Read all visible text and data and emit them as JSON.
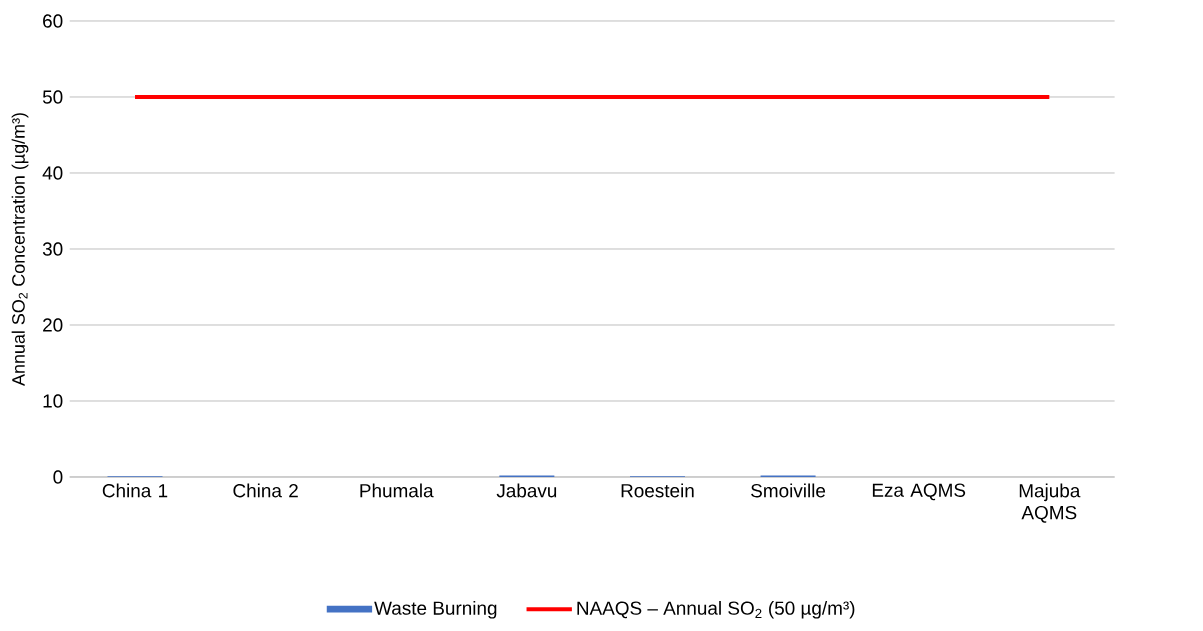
{
  "chart_data": {
    "type": "bar",
    "ylabel": "Annual SO$_{2}$ Concentration (µg/m³)",
    "categories": [
      "China 1",
      "China 2",
      "Phumala",
      "Jabavu",
      "Roestein",
      "Smoiville",
      "Eza AQMS",
      "Majuba AQMS"
    ],
    "series": [
      {
        "name": "Waste Burning",
        "color": "#4472c4",
        "values": [
          0.1,
          0,
          0,
          0.2,
          0.1,
          0.2,
          0,
          0
        ]
      },
      {
        "name": "NAAQS – Annual SO$_{2}$ (50 µg/m³)",
        "type": "line",
        "color": "#ff0000",
        "values": [
          50,
          50,
          50,
          50,
          50,
          50,
          50,
          50
        ]
      }
    ],
    "ylim": [
      0,
      60
    ],
    "yticks": [
      0,
      10,
      20,
      30,
      40,
      50,
      60
    ],
    "grid": "y",
    "legend": "bottom"
  }
}
